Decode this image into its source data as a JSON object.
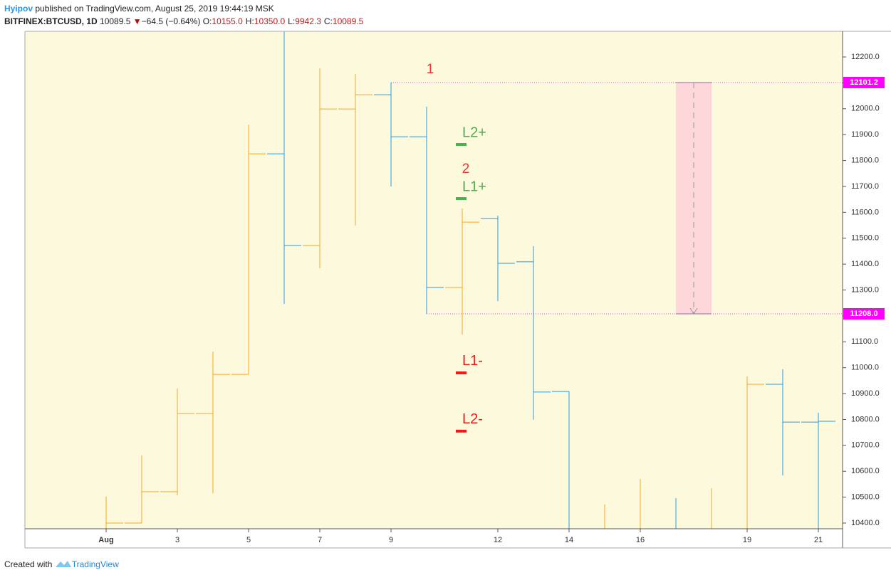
{
  "header": {
    "author": "Hyipov",
    "published": "published on TradingView.com, August 25, 2019 19:44:19 MSK",
    "symbol": "BITFINEX:BTCUSD, 1D",
    "last": "10089.5",
    "arrow": "▼",
    "change": "−64.5 (−0.64%)",
    "ohlc": [
      {
        "key": "O:",
        "value": "10155.0"
      },
      {
        "key": "H:",
        "value": "10350.0"
      },
      {
        "key": "L:",
        "value": "9942.3"
      },
      {
        "key": "C:",
        "value": "10089.5"
      }
    ]
  },
  "chart_data": {
    "type": "ohlc",
    "x": [
      1,
      2,
      3,
      4,
      5,
      6,
      7,
      8,
      9,
      10,
      11,
      12,
      13,
      14,
      15,
      16,
      17,
      18,
      19,
      20,
      21
    ],
    "open": [
      null,
      10400,
      10521,
      10823,
      10974,
      11826,
      11472,
      11999,
      12054,
      11892,
      11310,
      11576,
      11409,
      10908,
      null,
      null,
      null,
      null,
      null,
      10936,
      10790
    ],
    "high": [
      10502,
      10661,
      10919,
      11062,
      11939,
      null,
      12156,
      12134,
      12101.2,
      12008,
      11615,
      11587,
      11469,
      10908,
      10472,
      10570,
      10496,
      10535,
      10966,
      10994,
      10826
    ],
    "low": [
      null,
      10400,
      10507,
      10515,
      10974,
      11246,
      11384,
      11549,
      11700,
      11208,
      11128,
      11257,
      10799,
      null,
      null,
      null,
      null,
      null,
      null,
      10584,
      null
    ],
    "close": [
      10400,
      10521,
      10823,
      10974,
      11826,
      11472,
      11999,
      12054,
      11892,
      11310,
      11562,
      11403,
      10906,
      null,
      null,
      null,
      null,
      null,
      10936,
      10790,
      10793
    ],
    "colors": [
      "#f5a623",
      "#f5a623",
      "#f5a623",
      "#f5a623",
      "#f5a623",
      "#2b9ae4",
      "#f5a623",
      "#f5a623",
      "#2b9ae4",
      "#2b9ae4",
      "#f5a623",
      "#2b9ae4",
      "#2b9ae4",
      "#2b9ae4",
      "#f5a623",
      "#f5a623",
      "#2b9ae4",
      "#f5a623",
      "#f5a623",
      "#2b9ae4",
      "#2b9ae4"
    ],
    "xlim": [
      -1.28,
      21.68
    ],
    "xticks": [
      {
        "value": 1,
        "label": "Aug"
      },
      3,
      5,
      7,
      9,
      12,
      14,
      16,
      19,
      21
    ],
    "ylim": [
      10378,
      12299
    ],
    "yticks": [
      {
        "value": 10400,
        "label": "10400.0"
      },
      {
        "value": 10500,
        "label": "10500.0"
      },
      {
        "value": 10600,
        "label": "10600.0"
      },
      {
        "value": 10700,
        "label": "10700.0"
      },
      {
        "value": 10800,
        "label": "10800.0"
      },
      {
        "value": 10900,
        "label": "10900.0"
      },
      {
        "value": 11000,
        "label": "11000.0"
      },
      {
        "value": 11100,
        "label": "11100.0"
      },
      {
        "value": 11200,
        "label": "11200.0"
      },
      {
        "value": 11300,
        "label": "11300.0"
      },
      {
        "value": 11400,
        "label": "11400.0"
      },
      {
        "value": 11500,
        "label": "11500.0"
      },
      {
        "value": 11600,
        "label": "11600.0"
      },
      {
        "value": 11700,
        "label": "11700.0"
      },
      {
        "value": 11800,
        "label": "11800.0"
      },
      {
        "value": 11900,
        "label": "11900.0"
      },
      {
        "value": 12000,
        "label": "12000.0"
      },
      {
        "value": 12100,
        "label": "12100.0"
      },
      {
        "value": 12200,
        "label": "12200.0"
      }
    ],
    "levels": [
      {
        "value": 12101.2,
        "label": "12101.2",
        "x_start": 9
      },
      {
        "value": 11208.0,
        "label": "11208.0",
        "x_start": 10
      }
    ],
    "measure": {
      "x": [
        17,
        18
      ],
      "from": 12101.2,
      "to": 11208.0
    },
    "annotations": [
      {
        "text": "1",
        "x": 10.1,
        "y": 12150
      },
      {
        "text": "2",
        "x": 11.1,
        "y": 11766
      }
    ],
    "markers": [
      {
        "label": "L2+",
        "value": 11862,
        "x": 11,
        "color": "#4caf50"
      },
      {
        "label": "L1+",
        "value": 11653,
        "x": 11,
        "color": "#4caf50"
      },
      {
        "label": "L1-",
        "value": 10980,
        "x": 11,
        "color": "#f01818"
      },
      {
        "label": "L2-",
        "value": 10755,
        "x": 11,
        "color": "#f01818"
      }
    ]
  },
  "footer": {
    "created": "Created with",
    "brand": "TradingView"
  }
}
